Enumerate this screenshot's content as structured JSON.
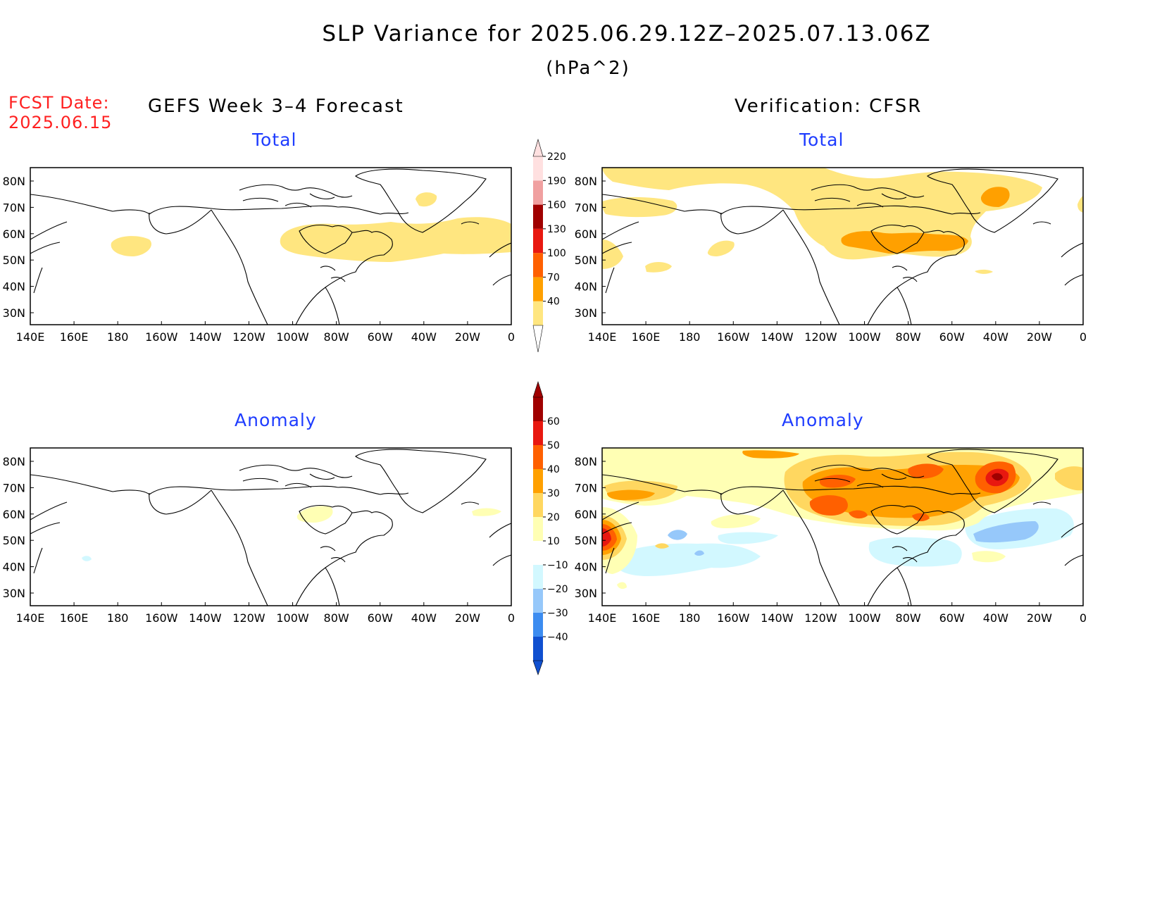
{
  "title": "SLP Variance for 2025.06.29.12Z–2025.07.13.06Z",
  "units": "(hPa^2)",
  "fcst_date_label": "FCST Date:",
  "fcst_date": "2025.06.15",
  "left_column_title": "GEFS Week 3–4 Forecast",
  "right_column_title": "Verification: CFSR",
  "panels": [
    {
      "id": "gefs-total",
      "title": "Total"
    },
    {
      "id": "cfsr-total",
      "title": "Total"
    },
    {
      "id": "gefs-anomaly",
      "title": "Anomaly"
    },
    {
      "id": "cfsr-anomaly",
      "title": "Anomaly"
    }
  ],
  "lat_labels": [
    "80N",
    "70N",
    "60N",
    "50N",
    "40N",
    "30N"
  ],
  "lon_labels": [
    "140E",
    "160E",
    "180",
    "160W",
    "140W",
    "120W",
    "100W",
    "80W",
    "60W",
    "40W",
    "20W",
    "0"
  ],
  "colorbars": {
    "total": {
      "labels": [
        "40",
        "70",
        "100",
        "130",
        "160",
        "190",
        "220"
      ],
      "colors": [
        "#ffe680",
        "#ffa000",
        "#ff6000",
        "#e81810",
        "#a00000",
        "#f0a0a0",
        "#ffe0e0"
      ]
    },
    "anomaly": {
      "labels": [
        "−40",
        "−30",
        "−20",
        "−10",
        "10",
        "20",
        "30",
        "40",
        "50",
        "60"
      ],
      "colors": [
        "#1050d0",
        "#3c8cf0",
        "#96c8fa",
        "#d2f8ff",
        "#ffffff",
        "#ffffb4",
        "#ffd760",
        "#ffa000",
        "#ff6000",
        "#e81810",
        "#a00000"
      ]
    }
  }
}
